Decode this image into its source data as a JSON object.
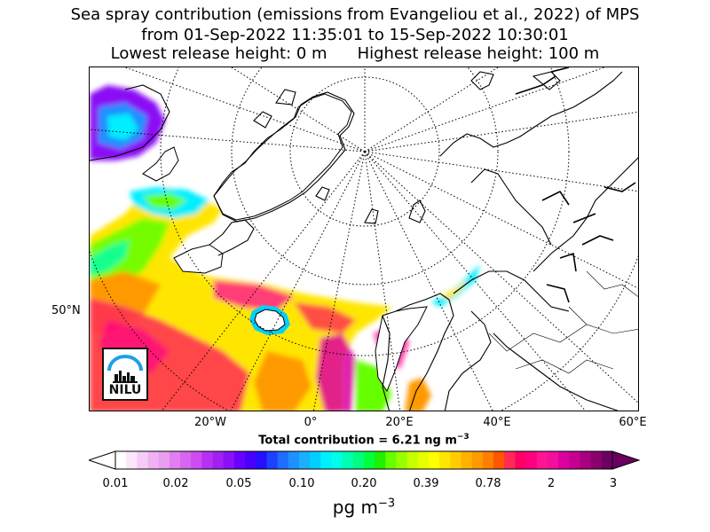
{
  "title": {
    "line1": "Sea spray contribution (emissions from Evangeliou et al., 2022) of MPS",
    "line2": "from 01-Sep-2022 11:35:01 to 15-Sep-2022 10:30:01",
    "line3_left": "Lowest release height: 0 m",
    "line3_right": "Highest release height: 100 m"
  },
  "map": {
    "projection": "polar-stereographic",
    "lat_labels": [
      "50°N"
    ],
    "lon_labels": [
      "20°W",
      "0°",
      "20°E",
      "40°E",
      "60°E"
    ],
    "total_prefix": "Total contribution = 6.21 ng m",
    "total_exponent": "−3",
    "logo_text": "NILU"
  },
  "colorbar": {
    "ticks": [
      "0.01",
      "0.02",
      "0.05",
      "0.10",
      "0.20",
      "0.39",
      "0.78",
      "2",
      "3"
    ],
    "unit": "pg m",
    "unit_exponent": "−3",
    "colors": [
      "#ffffff",
      "#fbe6fb",
      "#f5ccf7",
      "#f0b2f3",
      "#e99ef0",
      "#e27ff0",
      "#d865f1",
      "#cc4cf2",
      "#b830f3",
      "#a020f0",
      "#8a10f5",
      "#6a00ff",
      "#4800ff",
      "#2410ff",
      "#1e40ff",
      "#1e6eff",
      "#1e90ff",
      "#18b0ff",
      "#00cfff",
      "#00efff",
      "#00ffe6",
      "#00ffb2",
      "#00ff7f",
      "#00ff3c",
      "#22ee00",
      "#66ff00",
      "#99ff00",
      "#c8ff00",
      "#e6ff00",
      "#ffff00",
      "#ffe600",
      "#ffcc00",
      "#ffb200",
      "#ff9900",
      "#ff7f00",
      "#ff5500",
      "#ff2a55",
      "#ff0066",
      "#ff0080",
      "#ff1493",
      "#f0109c",
      "#dd00a0",
      "#c40090",
      "#a8007e",
      "#8c006d",
      "#6a0060"
    ]
  }
}
